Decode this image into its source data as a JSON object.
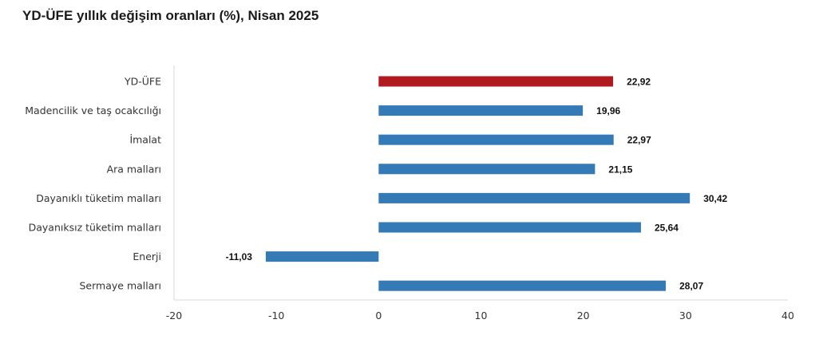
{
  "chart_data": {
    "type": "bar",
    "orientation": "horizontal",
    "title": "YD-ÜFE yıllık değişim oranları (%), Nisan 2025",
    "xlabel": "",
    "ylabel": "",
    "categories": [
      "YD-ÜFE",
      "Madencilik ve taş ocakcılığı",
      "İmalat",
      "Ara malları",
      "Dayanıklı tüketim malları",
      "Dayanıksız tüketim malları",
      "Enerji",
      "Sermaye malları"
    ],
    "values": [
      22.92,
      19.96,
      22.97,
      21.15,
      30.42,
      25.64,
      -11.03,
      28.07
    ],
    "value_labels": [
      "22,92",
      "19,96",
      "22,97",
      "21,15",
      "30,42",
      "25,64",
      "-11,03",
      "28,07"
    ],
    "colors": [
      "#b0191e",
      "#337ab7",
      "#337ab7",
      "#337ab7",
      "#337ab7",
      "#337ab7",
      "#337ab7",
      "#337ab7"
    ],
    "xlim": [
      -20,
      40
    ],
    "xticks": [
      -20,
      -10,
      0,
      10,
      20,
      30,
      40
    ],
    "xtick_labels": [
      "-20",
      "-10",
      "0",
      "10",
      "20",
      "30",
      "40"
    ],
    "grid": false,
    "legend": "none"
  }
}
